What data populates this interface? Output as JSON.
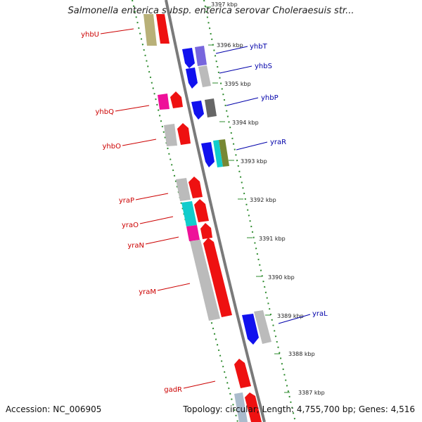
{
  "title": "Salmonella enterica subsp. enterica serovar Choleraesuis str...",
  "footer": {
    "accession": "Accession: NC_006905",
    "summary": "Topology: circular; Length: 4,755,700 bp; Genes: 4,516"
  },
  "colors": {
    "backbone": "#7a7a7a",
    "tick": "#2e8b2e",
    "forward_label": "#cc0000",
    "reverse_label": "#0000aa"
  },
  "ticks": [
    "3397 kbp",
    "3396 kbp",
    "3395 kbp",
    "3394 kbp",
    "3393 kbp",
    "3392 kbp",
    "3391 kbp",
    "3390 kbp",
    "3389 kbp",
    "3388 kbp",
    "3387 kbp"
  ],
  "genes_left": [
    {
      "name": "yhbU"
    },
    {
      "name": "yhbQ"
    },
    {
      "name": "yhbO"
    },
    {
      "name": "yraP"
    },
    {
      "name": "yraO"
    },
    {
      "name": "yraN"
    },
    {
      "name": "yraM"
    },
    {
      "name": "gadR"
    }
  ],
  "genes_right": [
    {
      "name": "yhbT"
    },
    {
      "name": "yhbS"
    },
    {
      "name": "yhbP"
    },
    {
      "name": "yraR"
    },
    {
      "name": "yraL"
    }
  ]
}
